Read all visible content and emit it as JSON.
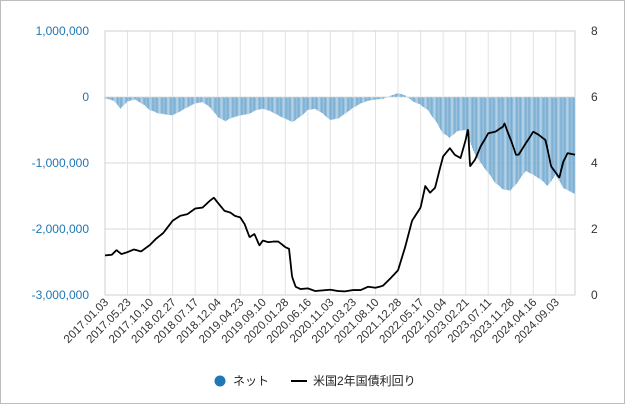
{
  "chart_data": {
    "type": "bar+line",
    "title": "",
    "legend": {
      "placement": "bottom-center"
    },
    "grid": true,
    "left_axis": {
      "ylim": [
        -3000000,
        1000000
      ],
      "ticks": [
        1000000,
        0,
        -1000000,
        -2000000,
        -3000000
      ],
      "tick_labels": [
        "1,000,000",
        "0",
        "-1,000,000",
        "-2,000,000",
        "-3,000,000"
      ],
      "color": "#1f77b4"
    },
    "right_axis": {
      "ylim": [
        0,
        8
      ],
      "ticks": [
        8,
        6,
        4,
        2,
        0
      ],
      "tick_labels": [
        "8",
        "6",
        "4",
        "2",
        "0"
      ]
    },
    "x_axis": {
      "start": "2017.01.03",
      "end": "2024.12.31",
      "tick_labels": [
        "2017.01.03",
        "2017.05.23",
        "2017.10.10",
        "2018.02.27",
        "2018.07.17",
        "2018.12.04",
        "2019.04.23",
        "2019.09.10",
        "2020.01.28",
        "2020.06.16",
        "2020.11.03",
        "2021.03.23",
        "2021.08.10",
        "2021.12.28",
        "2022.05.17",
        "2022.10.04",
        "2023.02.21",
        "2023.07.11",
        "2023.11.28",
        "2024.04.16",
        "2024.09.03"
      ]
    },
    "series": [
      {
        "name": "ネット",
        "kind": "bar",
        "axis": "left",
        "color": "#1f77b4",
        "points": [
          [
            "2017.01.03",
            -20000
          ],
          [
            "2017.03.01",
            -60000
          ],
          [
            "2017.04.10",
            -180000
          ],
          [
            "2017.05.23",
            -70000
          ],
          [
            "2017.07.10",
            -40000
          ],
          [
            "2017.09.01",
            -120000
          ],
          [
            "2017.10.10",
            -200000
          ],
          [
            "2017.12.01",
            -250000
          ],
          [
            "2018.02.27",
            -280000
          ],
          [
            "2018.04.15",
            -220000
          ],
          [
            "2018.05.30",
            -160000
          ],
          [
            "2018.07.17",
            -100000
          ],
          [
            "2018.09.01",
            -80000
          ],
          [
            "2018.10.15",
            -150000
          ],
          [
            "2018.12.04",
            -300000
          ],
          [
            "2019.01.20",
            -370000
          ],
          [
            "2019.03.01",
            -320000
          ],
          [
            "2019.04.23",
            -280000
          ],
          [
            "2019.06.15",
            -260000
          ],
          [
            "2019.08.01",
            -200000
          ],
          [
            "2019.09.10",
            -180000
          ],
          [
            "2019.11.01",
            -220000
          ],
          [
            "2019.12.15",
            -280000
          ],
          [
            "2020.01.28",
            -330000
          ],
          [
            "2020.03.15",
            -380000
          ],
          [
            "2020.05.01",
            -300000
          ],
          [
            "2020.06.16",
            -200000
          ],
          [
            "2020.08.01",
            -180000
          ],
          [
            "2020.09.15",
            -250000
          ],
          [
            "2020.11.03",
            -350000
          ],
          [
            "2020.12.20",
            -330000
          ],
          [
            "2021.02.01",
            -260000
          ],
          [
            "2021.03.23",
            -170000
          ],
          [
            "2021.05.10",
            -100000
          ],
          [
            "2021.06.25",
            -60000
          ],
          [
            "2021.08.10",
            -40000
          ],
          [
            "2021.09.25",
            -30000
          ],
          [
            "2021.11.10",
            20000
          ],
          [
            "2021.12.28",
            60000
          ],
          [
            "2022.02.10",
            30000
          ],
          [
            "2022.03.25",
            -60000
          ],
          [
            "2022.05.17",
            -120000
          ],
          [
            "2022.07.01",
            -200000
          ],
          [
            "2022.08.15",
            -350000
          ],
          [
            "2022.10.04",
            -550000
          ],
          [
            "2022.11.15",
            -620000
          ],
          [
            "2023.01.01",
            -520000
          ],
          [
            "2023.02.21",
            -500000
          ],
          [
            "2023.04.10",
            -820000
          ],
          [
            "2023.05.25",
            -1000000
          ],
          [
            "2023.07.11",
            -1150000
          ],
          [
            "2023.08.25",
            -1300000
          ],
          [
            "2023.10.10",
            -1400000
          ],
          [
            "2023.11.28",
            -1420000
          ],
          [
            "2024.01.15",
            -1280000
          ],
          [
            "2024.03.01",
            -1120000
          ],
          [
            "2024.04.16",
            -1180000
          ],
          [
            "2024.06.01",
            -1250000
          ],
          [
            "2024.07.15",
            -1350000
          ],
          [
            "2024.09.03",
            -1180000
          ],
          [
            "2024.10.20",
            -1380000
          ],
          [
            "2024.12.31",
            -1470000
          ]
        ]
      },
      {
        "name": "米国2年国債利回り",
        "kind": "line",
        "axis": "right",
        "color": "#000000",
        "points": [
          [
            "2017.01.03",
            1.2
          ],
          [
            "2017.02.15",
            1.22
          ],
          [
            "2017.03.15",
            1.36
          ],
          [
            "2017.04.15",
            1.24
          ],
          [
            "2017.05.23",
            1.3
          ],
          [
            "2017.07.01",
            1.38
          ],
          [
            "2017.08.15",
            1.32
          ],
          [
            "2017.10.10",
            1.52
          ],
          [
            "2017.11.15",
            1.7
          ],
          [
            "2017.12.31",
            1.88
          ],
          [
            "2018.02.27",
            2.25
          ],
          [
            "2018.04.15",
            2.4
          ],
          [
            "2018.05.30",
            2.45
          ],
          [
            "2018.07.17",
            2.62
          ],
          [
            "2018.09.01",
            2.65
          ],
          [
            "2018.10.15",
            2.85
          ],
          [
            "2018.11.10",
            2.95
          ],
          [
            "2018.12.04",
            2.8
          ],
          [
            "2019.01.15",
            2.55
          ],
          [
            "2019.02.20",
            2.5
          ],
          [
            "2019.03.20",
            2.4
          ],
          [
            "2019.04.23",
            2.35
          ],
          [
            "2019.05.20",
            2.15
          ],
          [
            "2019.06.20",
            1.75
          ],
          [
            "2019.07.20",
            1.85
          ],
          [
            "2019.08.20",
            1.5
          ],
          [
            "2019.09.10",
            1.65
          ],
          [
            "2019.10.15",
            1.6
          ],
          [
            "2019.11.15",
            1.62
          ],
          [
            "2019.12.15",
            1.62
          ],
          [
            "2020.01.28",
            1.45
          ],
          [
            "2020.02.20",
            1.4
          ],
          [
            "2020.03.10",
            0.55
          ],
          [
            "2020.04.01",
            0.25
          ],
          [
            "2020.05.01",
            0.18
          ],
          [
            "2020.06.16",
            0.2
          ],
          [
            "2020.08.01",
            0.12
          ],
          [
            "2020.09.15",
            0.14
          ],
          [
            "2020.11.03",
            0.16
          ],
          [
            "2020.12.20",
            0.12
          ],
          [
            "2021.02.01",
            0.11
          ],
          [
            "2021.03.23",
            0.15
          ],
          [
            "2021.05.10",
            0.15
          ],
          [
            "2021.06.25",
            0.25
          ],
          [
            "2021.08.10",
            0.22
          ],
          [
            "2021.09.25",
            0.28
          ],
          [
            "2021.11.10",
            0.5
          ],
          [
            "2021.12.28",
            0.75
          ],
          [
            "2022.02.10",
            1.45
          ],
          [
            "2022.03.25",
            2.25
          ],
          [
            "2022.05.17",
            2.65
          ],
          [
            "2022.06.15",
            3.3
          ],
          [
            "2022.07.15",
            3.1
          ],
          [
            "2022.08.15",
            3.25
          ],
          [
            "2022.09.15",
            3.85
          ],
          [
            "2022.10.04",
            4.2
          ],
          [
            "2022.11.15",
            4.45
          ],
          [
            "2022.12.15",
            4.25
          ],
          [
            "2023.01.20",
            4.15
          ],
          [
            "2023.02.21",
            4.7
          ],
          [
            "2023.03.08",
            5.05
          ],
          [
            "2023.03.20",
            3.9
          ],
          [
            "2023.04.20",
            4.1
          ],
          [
            "2023.05.25",
            4.5
          ],
          [
            "2023.07.11",
            4.9
          ],
          [
            "2023.08.25",
            4.95
          ],
          [
            "2023.10.10",
            5.1
          ],
          [
            "2023.10.20",
            5.2
          ],
          [
            "2023.11.28",
            4.7
          ],
          [
            "2023.12.31",
            4.25
          ],
          [
            "2024.01.15",
            4.25
          ],
          [
            "2024.03.01",
            4.6
          ],
          [
            "2024.04.16",
            4.95
          ],
          [
            "2024.05.20",
            4.85
          ],
          [
            "2024.06.30",
            4.7
          ],
          [
            "2024.08.05",
            3.9
          ],
          [
            "2024.09.03",
            3.7
          ],
          [
            "2024.09.25",
            3.55
          ],
          [
            "2024.10.20",
            4.05
          ],
          [
            "2024.11.15",
            4.3
          ],
          [
            "2024.12.31",
            4.25
          ]
        ]
      }
    ]
  }
}
